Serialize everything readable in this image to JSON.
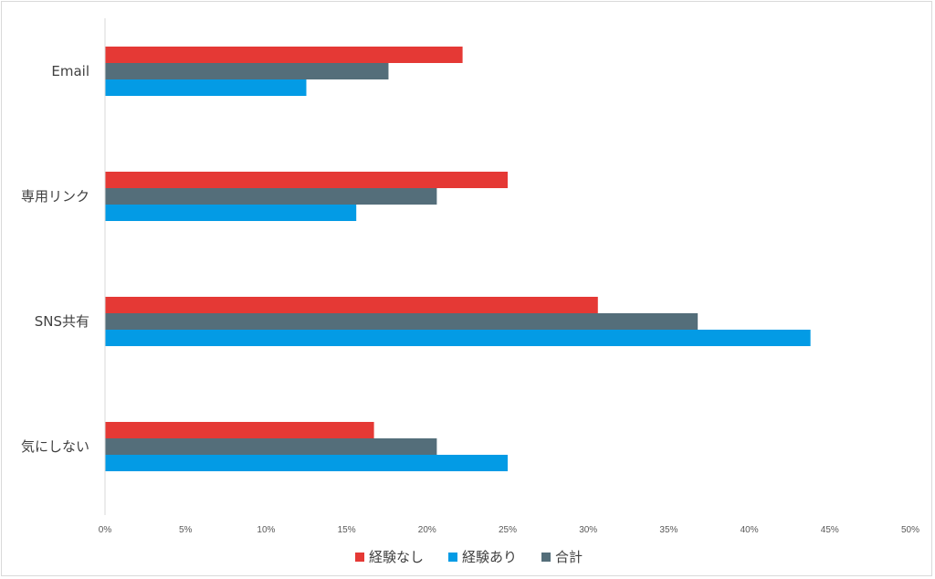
{
  "chart_data": {
    "type": "bar",
    "orientation": "horizontal",
    "categories": [
      "Email",
      "専用リンク",
      "SNS共有",
      "気にしない"
    ],
    "series": [
      {
        "name": "経験なし",
        "color": "#e53935",
        "values": [
          22.2,
          25.0,
          30.6,
          16.7
        ]
      },
      {
        "name": "合計",
        "color": "#546e7a",
        "values": [
          17.6,
          20.6,
          36.8,
          20.6
        ]
      },
      {
        "name": "経験あり",
        "color": "#039be5",
        "values": [
          12.5,
          15.6,
          43.8,
          25.0
        ]
      }
    ],
    "legend_order": [
      "経験なし",
      "経験あり",
      "合計"
    ],
    "xlim": [
      0,
      50
    ],
    "xticks": [
      "0%",
      "5%",
      "10%",
      "15%",
      "20%",
      "25%",
      "30%",
      "35%",
      "40%",
      "45%",
      "50%"
    ],
    "grid": false,
    "legend_position": "bottom"
  }
}
